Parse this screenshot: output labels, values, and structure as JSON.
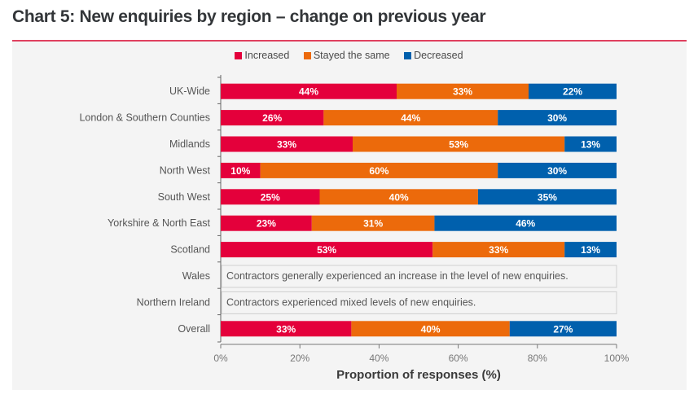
{
  "chart_data": {
    "type": "bar",
    "orientation": "horizontal",
    "stacked": true,
    "title": "Chart 5: New enquiries by region – change on previous year",
    "xlabel": "Proportion of responses (%)",
    "ylabel": "",
    "xlim": [
      0,
      100
    ],
    "xticks": [
      0,
      20,
      40,
      60,
      80,
      100
    ],
    "xtick_labels": [
      "0%",
      "20%",
      "40%",
      "60%",
      "80%",
      "100%"
    ],
    "legend_position": "top-center",
    "grid": false,
    "categories": [
      "UK-Wide",
      "London & Southern Counties",
      "Midlands",
      "North West",
      "South West",
      "Yorkshire & North East",
      "Scotland",
      "Wales",
      "Northern Ireland",
      "Overall"
    ],
    "series": [
      {
        "name": "Increased",
        "color": "#e4003b",
        "values": [
          44,
          26,
          33,
          10,
          25,
          23,
          53,
          null,
          null,
          33
        ]
      },
      {
        "name": "Stayed the same",
        "color": "#ec6a0b",
        "values": [
          33,
          44,
          53,
          60,
          40,
          31,
          33,
          null,
          null,
          40
        ]
      },
      {
        "name": "Decreased",
        "color": "#0060ad",
        "values": [
          22,
          30,
          13,
          30,
          35,
          46,
          13,
          null,
          null,
          27
        ]
      }
    ],
    "annotations": [
      {
        "category": "Wales",
        "text": "Contractors generally experienced an increase in the level of new enquiries."
      },
      {
        "category": "Northern Ireland",
        "text": "Contractors experienced mixed levels of new enquiries."
      }
    ]
  },
  "colors": {
    "accent_rule": "#e0405f",
    "panel_bg": "#f4f4f4"
  }
}
